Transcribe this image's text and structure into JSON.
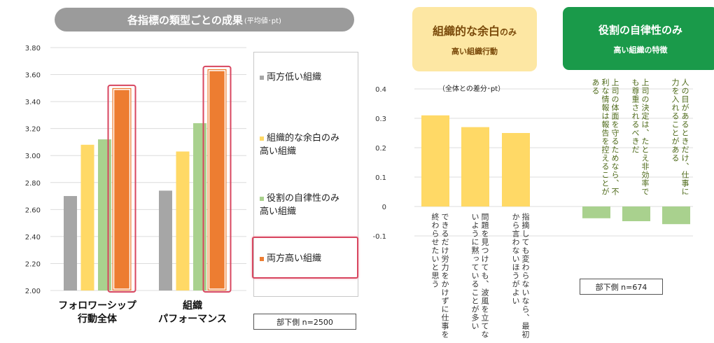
{
  "left_panel": {
    "title": "各指標の類型ごとの成果",
    "title_small": "(平均値･pt)",
    "legend": [
      {
        "label_lines": [
          "両方低い組織"
        ],
        "color": "#a6a6a6"
      },
      {
        "label_lines": [
          "組織的な余白のみ",
          "高い組織"
        ],
        "color": "#ffd966"
      },
      {
        "label_lines": [
          "役割の自律性のみ",
          "高い組織"
        ],
        "color": "#a9d18e"
      },
      {
        "label_lines": [
          "両方高い組織"
        ],
        "color": "#ed7d31"
      }
    ],
    "categories": [
      {
        "lines": [
          "フォロワーシップ",
          "行動全体"
        ]
      },
      {
        "lines": [
          "組織",
          "パフォーマンス"
        ]
      }
    ],
    "sample_note": "部下側 n=2500"
  },
  "right_panel": {
    "tag_margin": {
      "title": "組織的な余白",
      "title_small": "のみ",
      "subtitle": "高い組織行動"
    },
    "tag_autonomy": {
      "title": "役割の自律性のみ",
      "subtitle": "高い組織の特徴"
    },
    "axis_note": "（全体との差分･pt）",
    "bar_texts": [
      "できるだけ労力をかけずに仕事を終わらせたいと思う",
      "問題を見つけても、波風を立てないように黙っていることが多い",
      "指摘しても変わらないなら、最初から言わないほうがよい",
      "上司の体面を守るためなら、不利な情報は報告を控えることがある",
      "上司の決定は、たとえ非効率でも尊重されるべきだ",
      "人の目があるときだけ、仕事に力を入れることがある"
    ],
    "sample_note": "部下側 n=674"
  },
  "chart_data": [
    {
      "type": "bar",
      "title": "各指標の類型ごとの成果(平均値･pt)",
      "categories": [
        "フォロワーシップ行動全体",
        "組織パフォーマンス"
      ],
      "series": [
        {
          "name": "両方低い組織",
          "values": [
            2.7,
            2.74
          ],
          "color": "#a6a6a6"
        },
        {
          "name": "組織的な余白のみ高い組織",
          "values": [
            3.08,
            3.03
          ],
          "color": "#ffd966"
        },
        {
          "name": "役割の自律性のみ高い組織",
          "values": [
            3.12,
            3.24
          ],
          "color": "#a9d18e"
        },
        {
          "name": "両方高い組織",
          "values": [
            3.5,
            3.64
          ],
          "color": "#ed7d31",
          "highlighted": true
        }
      ],
      "ylim": [
        2.0,
        3.8
      ],
      "yticks": [
        "2.00",
        "2.20",
        "2.40",
        "2.60",
        "2.80",
        "3.00",
        "3.20",
        "3.40",
        "3.60",
        "3.80"
      ],
      "grid": true,
      "legend_position": "right"
    },
    {
      "type": "bar",
      "ylabel": "（全体との差分･pt）",
      "categories": [
        "できるだけ労力をかけずに仕事を終わらせたいと思う",
        "問題を見つけても、波風を立てないように黙っていることが多い",
        "指摘しても変わらないなら、最初から言わないほうがよい",
        "上司の体面を守るためなら、不利な情報は報告を控えることがある",
        "上司の決定は、たとえ非効率でも尊重されるべきだ",
        "人の目があるときだけ、仕事に力を入れることがある"
      ],
      "values": [
        0.31,
        0.27,
        0.25,
        -0.04,
        -0.05,
        -0.06
      ],
      "colors": [
        "#ffd966",
        "#ffd966",
        "#ffd966",
        "#a9d18e",
        "#a9d18e",
        "#a9d18e"
      ],
      "ylim": [
        -0.1,
        0.4
      ],
      "yticks": [
        "-0.1",
        "0",
        "0.1",
        "0.2",
        "0.3",
        "0.4"
      ],
      "grid": true
    }
  ]
}
